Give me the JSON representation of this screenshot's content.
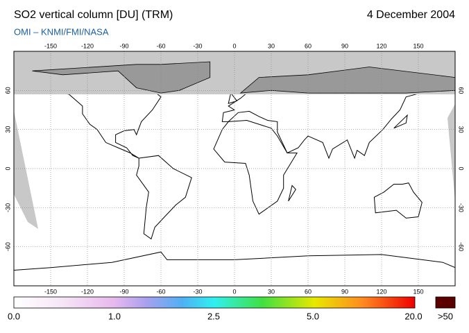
{
  "header": {
    "title": "SO2 vertical column [DU] (TRM)",
    "date": "4 December 2004",
    "subtitle": "OMI  –  KNMI/FMI/NASA"
  },
  "map": {
    "lon_ticks": [
      -150,
      -120,
      -90,
      -60,
      -30,
      0,
      30,
      60,
      90,
      120,
      150
    ],
    "lat_ticks": [
      60,
      30,
      0,
      -30,
      -60
    ]
  },
  "colorbar": {
    "labels": [
      "0.0",
      "1.0",
      "2.5",
      "5.0",
      "20.0"
    ],
    "overflow_label": ">50"
  }
}
